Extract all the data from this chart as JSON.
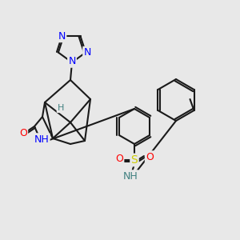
{
  "bg_color": "#e8e8e8",
  "bond_color": "#1a1a1a",
  "bond_width": 1.5,
  "atom_colors": {
    "N": "#0000ff",
    "O": "#ff0000",
    "S": "#cccc00",
    "C": "#1a1a1a",
    "H": "#408080"
  },
  "font_size_atom": 9,
  "font_size_H": 8
}
